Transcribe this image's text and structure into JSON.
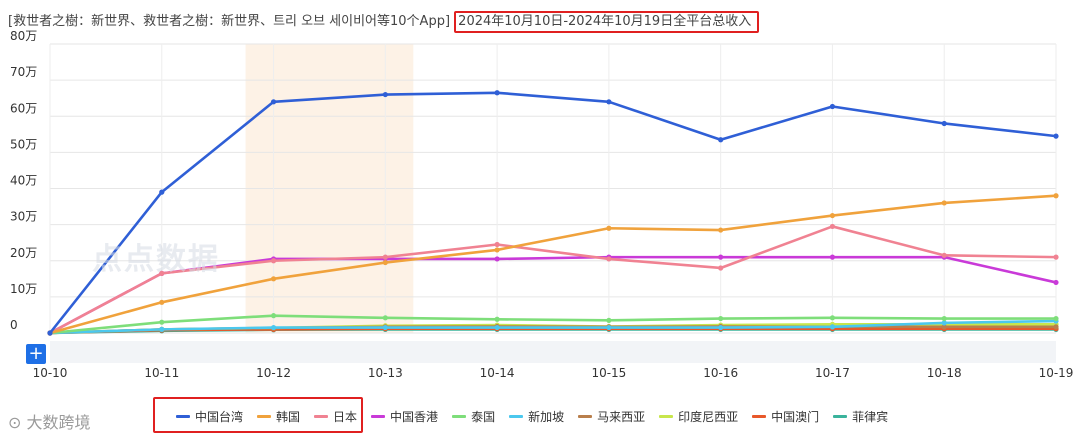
{
  "header": {
    "title": "[救世者之樹：新世界、救世者之樹：新世界、트리 오브 세이비어等10个App]",
    "range": "2024年10月10日-2024年10月19日全平台总收入"
  },
  "watermarks": {
    "brand": "大数跨境",
    "chart": "点点数据"
  },
  "zoom_label": "+",
  "chart_data": {
    "type": "line",
    "x": [
      "10-10",
      "10-11",
      "10-12",
      "10-13",
      "10-14",
      "10-15",
      "10-16",
      "10-17",
      "10-18",
      "10-19"
    ],
    "y_ticks": [
      "0",
      "10万",
      "20万",
      "30万",
      "40万",
      "50万",
      "60万",
      "70万",
      "80万"
    ],
    "ylim": [
      0,
      800000
    ],
    "highlight_range": [
      "10-12",
      "10-13"
    ],
    "series": [
      {
        "name": "中国台湾",
        "color": "#2f5fd6",
        "values": [
          0,
          390000,
          640000,
          660000,
          665000,
          640000,
          535000,
          627000,
          580000,
          545000
        ]
      },
      {
        "name": "韩国",
        "color": "#f0a23c",
        "values": [
          0,
          85000,
          150000,
          195000,
          230000,
          290000,
          285000,
          325000,
          360000,
          380000
        ]
      },
      {
        "name": "日本",
        "color": "#f08292",
        "values": [
          0,
          165000,
          200000,
          210000,
          245000,
          205000,
          180000,
          295000,
          215000,
          210000
        ]
      },
      {
        "name": "中国香港",
        "color": "#c93ad8",
        "values": [
          0,
          165000,
          205000,
          205000,
          205000,
          210000,
          210000,
          210000,
          210000,
          140000
        ]
      },
      {
        "name": "泰国",
        "color": "#7ede7a",
        "values": [
          0,
          30000,
          48000,
          42000,
          38000,
          35000,
          40000,
          42000,
          40000,
          40000
        ]
      },
      {
        "name": "新加坡",
        "color": "#4bc8ee",
        "values": [
          0,
          10000,
          15000,
          15000,
          15000,
          15000,
          15000,
          17000,
          28000,
          33000
        ]
      },
      {
        "name": "马来西亚",
        "color": "#b97f4c",
        "values": [
          0,
          10000,
          14000,
          17000,
          18000,
          17000,
          18000,
          17000,
          17000,
          17000
        ]
      },
      {
        "name": "印度尼西亚",
        "color": "#c8e64c",
        "values": [
          0,
          10000,
          14000,
          20000,
          22000,
          18000,
          22000,
          24000,
          24000,
          24000
        ]
      },
      {
        "name": "中国澳门",
        "color": "#e8582a",
        "values": [
          0,
          8000,
          10000,
          12000,
          12000,
          12000,
          12000,
          12000,
          12000,
          12000
        ]
      },
      {
        "name": "菲律宾",
        "color": "#3ab39c",
        "values": [
          0,
          6000,
          9000,
          10000,
          10000,
          10000,
          10000,
          10000,
          10000,
          10000
        ]
      }
    ]
  }
}
